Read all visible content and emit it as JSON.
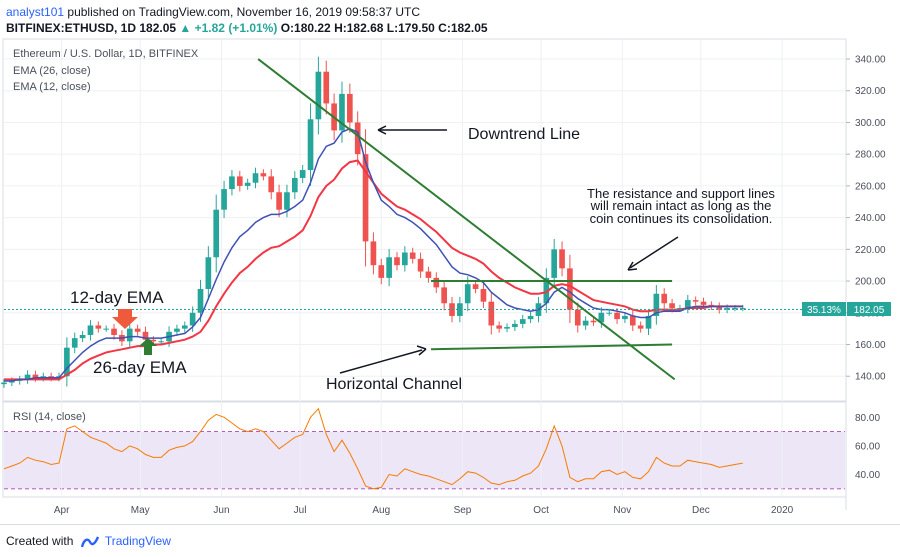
{
  "header": {
    "author": "analyst101",
    "published_text": "published on TradingView.com, November 16, 2019 09:58:37 UTC",
    "symbol_line": "BITFINEX:ETHUSD, 1D",
    "last_price": "182.05",
    "change": "▲ +1.82 (+1.01%)",
    "open": "O:180.22",
    "high": "H:182.68",
    "low": "L:179.50",
    "close": "C:182.05"
  },
  "legend": {
    "title": "Ethereum / U.S. Dollar, 1D, BITFINEX",
    "ema26": "EMA (26, close)",
    "ema12": "EMA (12, close)",
    "rsi": "RSI (14, close)"
  },
  "price_badges": {
    "percent": "35.13%",
    "price": "182.05"
  },
  "annotations": {
    "downtrend": "Downtrend Line",
    "channel": "Horizontal Channel",
    "ema12": "12-day EMA",
    "ema26": "26-day EMA",
    "note_line1": "The resistance and support lines",
    "note_line2": "will remain intact as long as the",
    "note_line3": "coin continues its consolidation."
  },
  "footer": {
    "created_with": "Created with",
    "brand": "TradingView"
  },
  "colors": {
    "up": "#26a69a",
    "down": "#ef5350",
    "ema26": "#f23645",
    "ema12": "#3f51b5",
    "trend": "#2e7d32",
    "rsi_line": "#f57c00",
    "rsi_band": "#e1d5f2",
    "rsi_bound": "#9c27b0",
    "price_line": "#26a69a"
  },
  "chart_data": {
    "type": "candlestick",
    "symbol": "BITFINEX:ETHUSD",
    "interval": "1D",
    "x_start": "2019-03-10",
    "x_end": "2020-01-25",
    "ylim": [
      125,
      352
    ],
    "y_ticks": [
      140,
      160,
      180,
      200,
      220,
      240,
      260,
      280,
      300,
      320,
      340
    ],
    "x_ticks": [
      {
        "label": "Apr",
        "date": "2019-04-01"
      },
      {
        "label": "May",
        "date": "2019-05-01"
      },
      {
        "label": "Jun",
        "date": "2019-06-01"
      },
      {
        "label": "Jul",
        "date": "2019-07-01"
      },
      {
        "label": "Aug",
        "date": "2019-08-01"
      },
      {
        "label": "Sep",
        "date": "2019-09-01"
      },
      {
        "label": "Oct",
        "date": "2019-10-01"
      },
      {
        "label": "Nov",
        "date": "2019-11-01"
      },
      {
        "label": "Dec",
        "date": "2019-12-01"
      },
      {
        "label": "2020",
        "date": "2020-01-01"
      }
    ],
    "close_series": {
      "start": "2019-03-10",
      "step_days": 3,
      "values": [
        136,
        137,
        138,
        141,
        139,
        140,
        139,
        140,
        158,
        164,
        166,
        172,
        170,
        170,
        166,
        162,
        170,
        168,
        163,
        162,
        162,
        168,
        170,
        172,
        180,
        195,
        215,
        245,
        258,
        266,
        260,
        262,
        268,
        266,
        256,
        245,
        256,
        265,
        270,
        302,
        332,
        312,
        295,
        318,
        300,
        280,
        225,
        210,
        202,
        215,
        210,
        218,
        214,
        206,
        202,
        196,
        186,
        178,
        186,
        198,
        195,
        187,
        172,
        170,
        171,
        173,
        176,
        178,
        186,
        202,
        220,
        208,
        182,
        172,
        175,
        174,
        180,
        180,
        176,
        178,
        172,
        170,
        178,
        192,
        186,
        183,
        183,
        188,
        187,
        185,
        184,
        182,
        183,
        183,
        183
      ]
    },
    "ema12_values": [
      137,
      137,
      138,
      138,
      139,
      139,
      139,
      139,
      145,
      150,
      155,
      159,
      162,
      164,
      164,
      164,
      165,
      165,
      164,
      164,
      164,
      165,
      166,
      167,
      171,
      177,
      189,
      201,
      212,
      221,
      228,
      232,
      237,
      240,
      242,
      242,
      244,
      247,
      251,
      262,
      277,
      285,
      287,
      294,
      296,
      294,
      275,
      262,
      251,
      247,
      242,
      240,
      237,
      233,
      228,
      223,
      216,
      209,
      205,
      204,
      202,
      199,
      193,
      189,
      185,
      183,
      182,
      181,
      182,
      186,
      193,
      196,
      193,
      189,
      186,
      183,
      182,
      182,
      181,
      180,
      178,
      177,
      177,
      180,
      181,
      181,
      181,
      183,
      184,
      184,
      184,
      184,
      184,
      184,
      184
    ],
    "ema26_values": [
      138,
      138,
      138,
      138,
      138,
      138,
      138,
      138,
      141,
      144,
      148,
      151,
      153,
      155,
      156,
      157,
      158,
      159,
      159,
      160,
      160,
      161,
      162,
      163,
      165,
      168,
      175,
      184,
      192,
      199,
      205,
      209,
      214,
      218,
      221,
      222,
      225,
      228,
      232,
      241,
      253,
      260,
      264,
      271,
      275,
      276,
      269,
      262,
      255,
      251,
      247,
      245,
      242,
      239,
      235,
      231,
      226,
      221,
      218,
      216,
      214,
      211,
      206,
      202,
      199,
      196,
      194,
      192,
      192,
      193,
      197,
      198,
      197,
      194,
      191,
      188,
      187,
      186,
      185,
      184,
      182,
      181,
      181,
      182,
      182,
      182,
      182,
      183,
      183,
      183,
      184,
      184,
      184,
      184,
      184
    ],
    "rsi": {
      "label": "RSI (14, close)",
      "ylim": [
        25,
        90
      ],
      "y_ticks": [
        40,
        60,
        80
      ],
      "bands": [
        30,
        70
      ],
      "values": [
        44,
        46,
        48,
        52,
        50,
        49,
        47,
        48,
        72,
        74,
        70,
        66,
        64,
        62,
        58,
        56,
        60,
        58,
        54,
        52,
        52,
        57,
        59,
        60,
        63,
        70,
        78,
        82,
        80,
        76,
        72,
        70,
        72,
        70,
        64,
        58,
        62,
        66,
        68,
        80,
        86,
        68,
        56,
        64,
        55,
        44,
        32,
        30,
        31,
        40,
        39,
        44,
        42,
        40,
        39,
        37,
        35,
        33,
        37,
        42,
        41,
        38,
        34,
        33,
        35,
        36,
        39,
        41,
        46,
        58,
        74,
        60,
        38,
        35,
        37,
        37,
        42,
        43,
        40,
        42,
        38,
        37,
        42,
        52,
        48,
        46,
        46,
        50,
        49,
        48,
        47,
        45,
        46,
        47,
        48
      ]
    },
    "trendlines": [
      {
        "name": "Downtrend Line",
        "from": {
          "date": "2019-06-15",
          "value": 340
        },
        "to": {
          "date": "2019-11-21",
          "value": 138
        }
      },
      {
        "name": "Resistance",
        "from": {
          "date": "2019-08-20",
          "value": 200
        },
        "to": {
          "date": "2019-11-20",
          "value": 200
        }
      },
      {
        "name": "Support",
        "from": {
          "date": "2019-08-20",
          "value": 157
        },
        "to": {
          "date": "2019-11-20",
          "value": 160
        }
      }
    ],
    "last_close": 182.05,
    "last_change_percent": "35.13%"
  }
}
